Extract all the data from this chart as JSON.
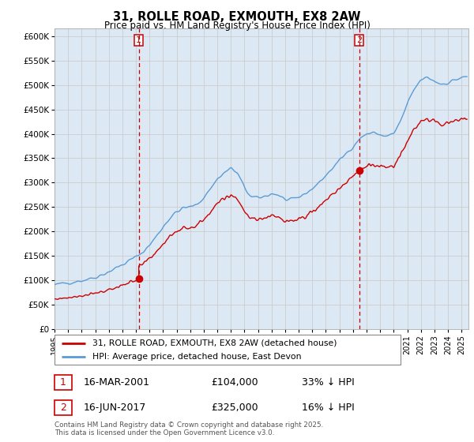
{
  "title": "31, ROLLE ROAD, EXMOUTH, EX8 2AW",
  "subtitle": "Price paid vs. HM Land Registry's House Price Index (HPI)",
  "ylabel_ticks": [
    "£0",
    "£50K",
    "£100K",
    "£150K",
    "£200K",
    "£250K",
    "£300K",
    "£350K",
    "£400K",
    "£450K",
    "£500K",
    "£550K",
    "£600K"
  ],
  "ytick_values": [
    0,
    50000,
    100000,
    150000,
    200000,
    250000,
    300000,
    350000,
    400000,
    450000,
    500000,
    550000,
    600000
  ],
  "ylim": [
    0,
    615000
  ],
  "xlim_start": 1995.0,
  "xlim_end": 2025.5,
  "xtick_years": [
    1995,
    1996,
    1997,
    1998,
    1999,
    2000,
    2001,
    2002,
    2003,
    2004,
    2005,
    2006,
    2007,
    2008,
    2009,
    2010,
    2011,
    2012,
    2013,
    2014,
    2015,
    2016,
    2017,
    2018,
    2019,
    2020,
    2021,
    2022,
    2023,
    2024,
    2025
  ],
  "hpi_color": "#5b9bd5",
  "price_color": "#cc0000",
  "vline_color": "#cc0000",
  "marker1_year": 2001.21,
  "marker1_price": 104000,
  "marker2_year": 2017.46,
  "marker2_price": 325000,
  "grid_color": "#cccccc",
  "bg_color": "#dce9f5",
  "legend_label_price": "31, ROLLE ROAD, EXMOUTH, EX8 2AW (detached house)",
  "legend_label_hpi": "HPI: Average price, detached house, East Devon",
  "note1_date": "16-MAR-2001",
  "note1_price": "£104,000",
  "note1_pct": "33% ↓ HPI",
  "note2_date": "16-JUN-2017",
  "note2_price": "£325,000",
  "note2_pct": "16% ↓ HPI",
  "footer": "Contains HM Land Registry data © Crown copyright and database right 2025.\nThis data is licensed under the Open Government Licence v3.0.",
  "hpi_anchors_t": [
    1995.0,
    1995.5,
    1996.0,
    1996.5,
    1997.0,
    1997.5,
    1998.0,
    1998.5,
    1999.0,
    1999.5,
    2000.0,
    2000.5,
    2001.0,
    2001.5,
    2002.0,
    2002.5,
    2003.0,
    2003.5,
    2004.0,
    2004.5,
    2005.0,
    2005.5,
    2006.0,
    2006.5,
    2007.0,
    2007.5,
    2008.0,
    2008.5,
    2009.0,
    2009.5,
    2010.0,
    2010.5,
    2011.0,
    2011.5,
    2012.0,
    2012.5,
    2013.0,
    2013.5,
    2014.0,
    2014.5,
    2015.0,
    2015.5,
    2016.0,
    2016.5,
    2017.0,
    2017.5,
    2018.0,
    2018.5,
    2019.0,
    2019.5,
    2020.0,
    2020.5,
    2021.0,
    2021.5,
    2022.0,
    2022.5,
    2023.0,
    2023.5,
    2024.0,
    2024.5,
    2025.0
  ],
  "hpi_anchors_v": [
    90000,
    93000,
    96000,
    98000,
    100000,
    103000,
    107000,
    112000,
    118000,
    125000,
    132000,
    140000,
    148000,
    158000,
    172000,
    190000,
    210000,
    228000,
    240000,
    248000,
    250000,
    255000,
    270000,
    288000,
    308000,
    320000,
    330000,
    318000,
    290000,
    270000,
    268000,
    272000,
    278000,
    275000,
    265000,
    263000,
    270000,
    278000,
    288000,
    300000,
    315000,
    330000,
    345000,
    360000,
    375000,
    390000,
    400000,
    402000,
    398000,
    395000,
    400000,
    425000,
    460000,
    490000,
    510000,
    515000,
    508000,
    502000,
    505000,
    510000,
    515000
  ]
}
